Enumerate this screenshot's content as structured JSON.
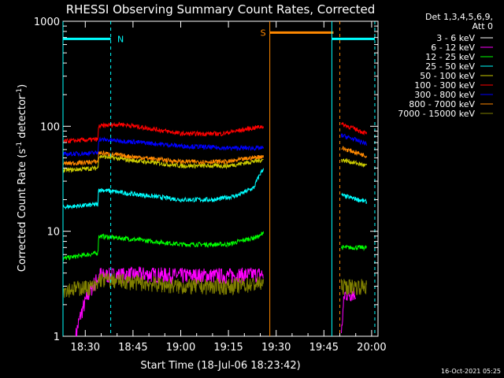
{
  "chart_data": {
    "type": "line",
    "title": "RHESSI Observing Summary Count Rates, Corrected",
    "xlabel": "Start Time (18-Jul-06 18:23:42)",
    "ylabel": "Corrected Count Rate (s⁻¹ detector⁻¹)",
    "ylabel_parts": {
      "pre": "Corrected Count Rate (s",
      "sup1": "-1",
      "mid": " detector",
      "sup2": "-1",
      "post": ")"
    },
    "y_scale": "log",
    "ylim": [
      1,
      1000
    ],
    "xlim_minutes_after_1823": [
      0,
      99
    ],
    "x_ticks": [
      {
        "label": "18:30",
        "min": 7
      },
      {
        "label": "18:45",
        "min": 22
      },
      {
        "label": "19:00",
        "min": 37
      },
      {
        "label": "19:15",
        "min": 52
      },
      {
        "label": "19:30",
        "min": 67
      },
      {
        "label": "19:45",
        "min": 82
      },
      {
        "label": "20:00",
        "min": 97
      }
    ],
    "y_ticks": [
      {
        "label": "1",
        "value": 1
      },
      {
        "label": "10",
        "value": 10
      },
      {
        "label": "100",
        "value": 100
      },
      {
        "label": "1000",
        "value": 1000
      }
    ],
    "legend_header": [
      "Det 1,3,4,5,6,9,",
      "Att 0"
    ],
    "legend_placement": "right",
    "series": [
      {
        "name": "3 - 6 keV",
        "color": "#ffffff",
        "level": null
      },
      {
        "name": "6 - 12 keV",
        "color": "#ff00ff",
        "segments": [
          [
            4,
            1
          ],
          [
            12,
            4
          ],
          [
            12.2,
            3.8
          ],
          [
            25,
            3.9
          ],
          [
            37,
            3.8
          ],
          [
            52,
            3.8
          ],
          [
            63,
            3.9
          ]
        ],
        "seg2": [
          [
            87.5,
            1
          ],
          [
            88.5,
            2.5
          ],
          [
            92,
            2.6
          ]
        ]
      },
      {
        "name": "12 - 25 keV",
        "color": "#00ff00",
        "segments": [
          [
            0,
            5.5
          ],
          [
            11,
            6.2
          ],
          [
            11.2,
            9
          ],
          [
            20,
            8.5
          ],
          [
            37,
            7.5
          ],
          [
            52,
            7.5
          ],
          [
            62,
            9
          ],
          [
            63,
            10
          ]
        ],
        "seg2": [
          [
            87.5,
            7
          ],
          [
            95.5,
            7
          ]
        ]
      },
      {
        "name": "25 - 50 keV",
        "color": "#00ffff",
        "segments": [
          [
            0,
            17
          ],
          [
            11,
            18
          ],
          [
            11.2,
            25
          ],
          [
            20,
            23
          ],
          [
            37,
            20
          ],
          [
            48,
            20
          ],
          [
            55,
            22
          ],
          [
            60,
            26
          ],
          [
            63,
            40
          ]
        ],
        "seg2": [
          [
            87.5,
            22
          ],
          [
            95.5,
            19
          ]
        ]
      },
      {
        "name": "50 - 100 keV",
        "color": "#cccc00",
        "segments": [
          [
            0,
            38
          ],
          [
            11,
            40
          ],
          [
            11.2,
            52
          ],
          [
            20,
            48
          ],
          [
            37,
            42
          ],
          [
            52,
            42
          ],
          [
            63,
            48
          ]
        ],
        "seg2": [
          [
            87.5,
            48
          ],
          [
            95.5,
            42
          ]
        ]
      },
      {
        "name": "100 - 300 keV",
        "color": "#ff0000",
        "segments": [
          [
            0,
            72
          ],
          [
            11,
            75
          ],
          [
            11.2,
            100
          ],
          [
            18,
            105
          ],
          [
            37,
            85
          ],
          [
            50,
            85
          ],
          [
            63,
            100
          ]
        ],
        "seg2": [
          [
            87.5,
            105
          ],
          [
            95.5,
            85
          ]
        ]
      },
      {
        "name": "300 - 800 keV",
        "color": "#0000ff",
        "segments": [
          [
            0,
            54
          ],
          [
            11,
            56
          ],
          [
            11.2,
            75
          ],
          [
            20,
            72
          ],
          [
            37,
            65
          ],
          [
            52,
            62
          ],
          [
            63,
            62
          ]
        ],
        "seg2": [
          [
            87.5,
            82
          ],
          [
            95.5,
            68
          ]
        ]
      },
      {
        "name": "800 - 7000 keV",
        "color": "#ff8800",
        "segments": [
          [
            0,
            44
          ],
          [
            11,
            46
          ],
          [
            11.2,
            56
          ],
          [
            20,
            52
          ],
          [
            37,
            46
          ],
          [
            52,
            46
          ],
          [
            63,
            52
          ]
        ],
        "seg2": [
          [
            87.5,
            62
          ],
          [
            95.5,
            52
          ]
        ]
      },
      {
        "name": "7000 - 15000 keV",
        "color": "#808000",
        "segments": [
          [
            0,
            2.8
          ],
          [
            11,
            3
          ],
          [
            11.2,
            3.5
          ],
          [
            37,
            3
          ],
          [
            52,
            3
          ],
          [
            63,
            3.2
          ]
        ],
        "seg2": [
          [
            87.5,
            3
          ],
          [
            95.5,
            3
          ]
        ]
      }
    ],
    "markers": [
      {
        "label": "N",
        "color": "#00ffff",
        "bar": [
          0,
          15
        ],
        "bar_level": 680,
        "dashed_at": [
          15
        ],
        "solid_at": [
          0
        ]
      },
      {
        "label": "S",
        "color": "#ff8800",
        "bar": [
          65,
          85
        ],
        "bar_level": 780,
        "solid_at": [
          65
        ],
        "dashed_at": [
          87
        ]
      },
      {
        "label": "",
        "color": "#00ffff",
        "bar": [
          84.5,
          98
        ],
        "bar_level": 680,
        "solid_at": [
          84.5
        ],
        "dashed_at": [
          98
        ]
      }
    ]
  },
  "footer": {
    "timestamp": "16-Oct-2021 05:25"
  }
}
